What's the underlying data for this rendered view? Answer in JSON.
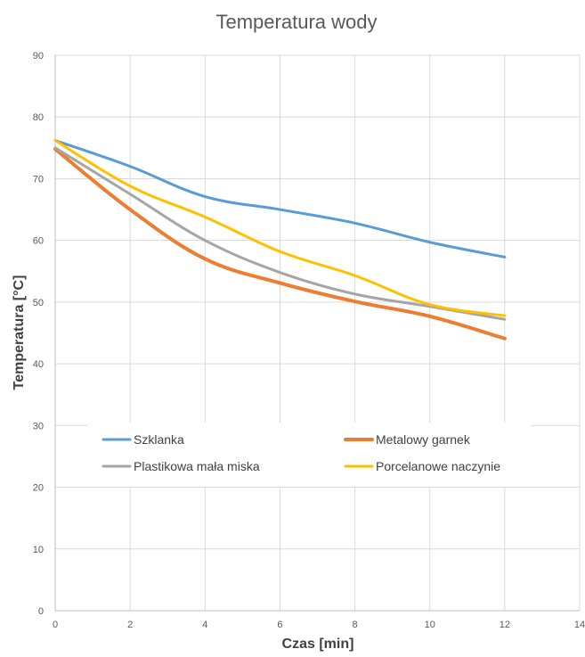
{
  "chart_data": {
    "type": "line",
    "title": "Temperatura wody",
    "xlabel": "Czas [min]",
    "ylabel": "Temperatura [°C]",
    "xlim": [
      0,
      14
    ],
    "ylim": [
      0,
      90
    ],
    "xticks": [
      "0",
      "2",
      "4",
      "6",
      "8",
      "10",
      "12",
      "14"
    ],
    "yticks": [
      "0",
      "10",
      "20",
      "30",
      "40",
      "50",
      "60",
      "70",
      "80",
      "90"
    ],
    "grid": true,
    "legend_position": "inside-lower-middle",
    "x": [
      0,
      2,
      4,
      6,
      8,
      10,
      12
    ],
    "series": [
      {
        "name": "Szklanka",
        "color": "#5b9bd5",
        "values": [
          76.2,
          72.0,
          67.1,
          65.0,
          62.8,
          59.7,
          57.3
        ]
      },
      {
        "name": "Metalowy garnek",
        "color": "#ed7d31",
        "values": [
          74.8,
          65.0,
          57.0,
          53.1,
          50.1,
          47.7,
          44.1
        ]
      },
      {
        "name": "Plastikowa mała miska",
        "color": "#a5a5a5",
        "values": [
          75.0,
          67.5,
          60.0,
          54.8,
          51.3,
          49.3,
          47.2
        ]
      },
      {
        "name": "Porcelanowe naczynie",
        "color": "#ffc000",
        "values": [
          76.2,
          68.8,
          63.8,
          58.2,
          54.3,
          49.6,
          47.8
        ]
      }
    ]
  }
}
